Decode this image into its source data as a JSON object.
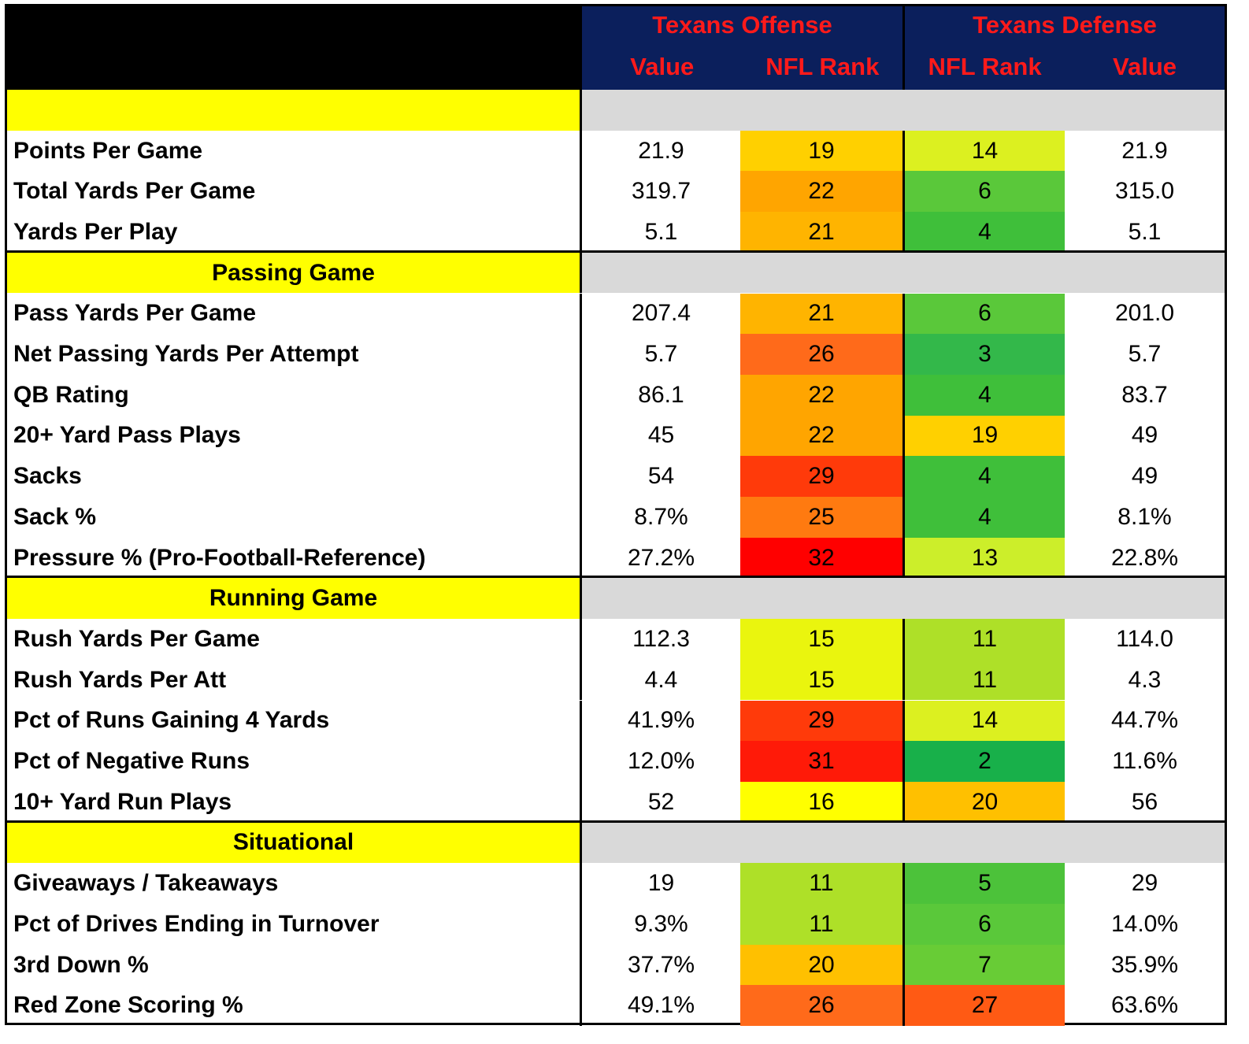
{
  "header": {
    "offense_title": "Texans Offense",
    "defense_title": "Texans Defense",
    "offense_value": "Value",
    "offense_rank": "NFL Rank",
    "defense_rank": "NFL Rank",
    "defense_value": "Value"
  },
  "colors": {
    "header_bg": "#0b1f5c",
    "header_text": "#ff1a1a",
    "section_bg": "#ffff00",
    "section_gray": "#d9d9d9"
  },
  "sections": [
    {
      "title": "",
      "rows": [
        {
          "label": "Points Per Game",
          "off_value": "21.9",
          "off_rank": "19",
          "off_color": "#ffd000",
          "def_rank": "14",
          "def_color": "#dcf020",
          "def_value": "21.9"
        },
        {
          "label": "Total Yards Per Game",
          "off_value": "319.7",
          "off_rank": "22",
          "off_color": "#ffa500",
          "def_rank": "6",
          "def_color": "#5ac83a",
          "def_value": "315.0"
        },
        {
          "label": "Yards Per Play",
          "off_value": "5.1",
          "off_rank": "21",
          "off_color": "#ffb400",
          "def_rank": "4",
          "def_color": "#3fbf3a",
          "def_value": "5.1"
        }
      ]
    },
    {
      "title": "Passing Game",
      "rows": [
        {
          "label": "Pass Yards Per Game",
          "off_value": "207.4",
          "off_rank": "21",
          "off_color": "#ffb400",
          "def_rank": "6",
          "def_color": "#5ac83a",
          "def_value": "201.0"
        },
        {
          "label": "Net Passing Yards Per Attempt",
          "off_value": "5.7",
          "off_rank": "26",
          "off_color": "#ff6a1a",
          "def_rank": "3",
          "def_color": "#33b84a",
          "def_value": "5.7"
        },
        {
          "label": "QB Rating",
          "off_value": "86.1",
          "off_rank": "22",
          "off_color": "#ffa500",
          "def_rank": "4",
          "def_color": "#3fbf3a",
          "def_value": "83.7"
        },
        {
          "label": "20+ Yard Pass Plays",
          "off_value": "45",
          "off_rank": "22",
          "off_color": "#ffa500",
          "def_rank": "19",
          "def_color": "#ffd000",
          "def_value": "49"
        },
        {
          "label": "Sacks",
          "off_value": "54",
          "off_rank": "29",
          "off_color": "#ff3a0a",
          "def_rank": "4",
          "def_color": "#3fbf3a",
          "def_value": "49"
        },
        {
          "label": "Sack %",
          "off_value": "8.7%",
          "off_rank": "25",
          "off_color": "#ff7a10",
          "def_rank": "4",
          "def_color": "#3fbf3a",
          "def_value": "8.1%"
        },
        {
          "label": "Pressure % (Pro-Football-Reference)",
          "off_value": "27.2%",
          "off_rank": "32",
          "off_color": "#ff0000",
          "def_rank": "13",
          "def_color": "#ccee2a",
          "def_value": "22.8%"
        }
      ]
    },
    {
      "title": "Running Game",
      "rows": [
        {
          "label": "Rush Yards Per Game",
          "off_value": "112.3",
          "off_rank": "15",
          "off_color": "#eaf50e",
          "def_rank": "11",
          "def_color": "#aee028",
          "def_value": "114.0"
        },
        {
          "label": "Rush Yards Per Att",
          "off_value": "4.4",
          "off_rank": "15",
          "off_color": "#eaf50e",
          "def_rank": "11",
          "def_color": "#aee028",
          "def_value": "4.3"
        },
        {
          "label": "Pct of Runs Gaining 4 Yards",
          "off_value": "41.9%",
          "off_rank": "29",
          "off_color": "#ff3a0a",
          "def_rank": "14",
          "def_color": "#dcf020",
          "def_value": "44.7%"
        },
        {
          "label": "Pct of Negative Runs",
          "off_value": "12.0%",
          "off_rank": "31",
          "off_color": "#ff1a08",
          "def_rank": "2",
          "def_color": "#18b04a",
          "def_value": "11.6%"
        },
        {
          "label": "10+ Yard Run Plays",
          "off_value": "52",
          "off_rank": "16",
          "off_color": "#ffff00",
          "def_rank": "20",
          "def_color": "#ffc000",
          "def_value": "56"
        }
      ]
    },
    {
      "title": "Situational",
      "rows": [
        {
          "label": "Giveaways / Takeaways",
          "off_value": "19",
          "off_rank": "11",
          "off_color": "#aee028",
          "def_rank": "5",
          "def_color": "#4cc23a",
          "def_value": "29"
        },
        {
          "label": "Pct of Drives Ending in Turnover",
          "off_value": "9.3%",
          "off_rank": "11",
          "off_color": "#aee028",
          "def_rank": "6",
          "def_color": "#5ac83a",
          "def_value": "14.0%"
        },
        {
          "label": "3rd Down %",
          "off_value": "37.7%",
          "off_rank": "20",
          "off_color": "#ffc000",
          "def_rank": "7",
          "def_color": "#68cc36",
          "def_value": "35.9%"
        },
        {
          "label": "Red Zone Scoring %",
          "off_value": "49.1%",
          "off_rank": "26",
          "off_color": "#ff6a1a",
          "def_rank": "27",
          "def_color": "#ff5a14",
          "def_value": "63.6%"
        }
      ]
    }
  ]
}
